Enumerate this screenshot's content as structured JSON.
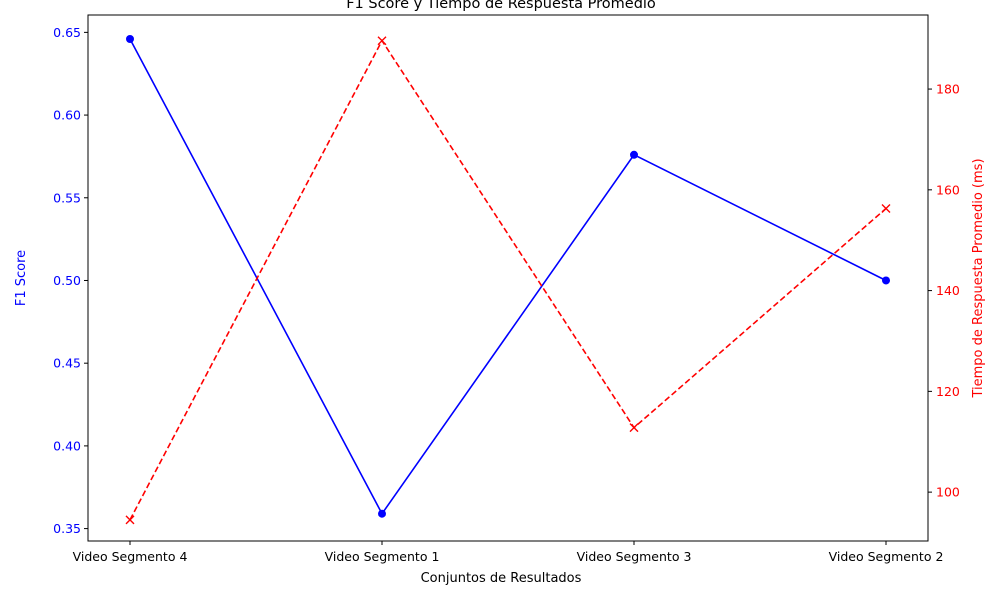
{
  "chart_data": {
    "type": "line",
    "title": "F1 Score y Tiempo de Respuesta Promedio",
    "xlabel": "Conjuntos de Resultados",
    "ylabel_left": "F1 Score",
    "ylabel_right": "Tiempo de Respuesta Promedio (ms)",
    "categories": [
      "Video Segmento 4",
      "Video Segmento 1",
      "Video Segmento 3",
      "Video Segmento 2"
    ],
    "left_axis": {
      "ylim": [
        0.3425,
        0.6605
      ],
      "ticks": [
        0.35,
        0.4,
        0.45,
        0.5,
        0.55,
        0.6,
        0.65
      ],
      "tick_labels": [
        "0.35",
        "0.40",
        "0.45",
        "0.50",
        "0.55",
        "0.60",
        "0.65"
      ],
      "color": "#0000ff"
    },
    "right_axis": {
      "ylim": [
        90.3,
        194.7
      ],
      "ticks": [
        100,
        120,
        140,
        160,
        180
      ],
      "tick_labels": [
        "100",
        "120",
        "140",
        "160",
        "180"
      ],
      "color": "#ff0000"
    },
    "series": [
      {
        "axis": "left",
        "values": [
          0.646,
          0.359,
          0.576,
          0.5
        ],
        "color": "#0000ff",
        "line": "solid",
        "marker": "circle"
      },
      {
        "axis": "right",
        "values": [
          94.5,
          189.6,
          112.8,
          156.3
        ],
        "color": "#ff0000",
        "line": "dashed",
        "marker": "x"
      }
    ],
    "grid": false,
    "legend": "none"
  }
}
